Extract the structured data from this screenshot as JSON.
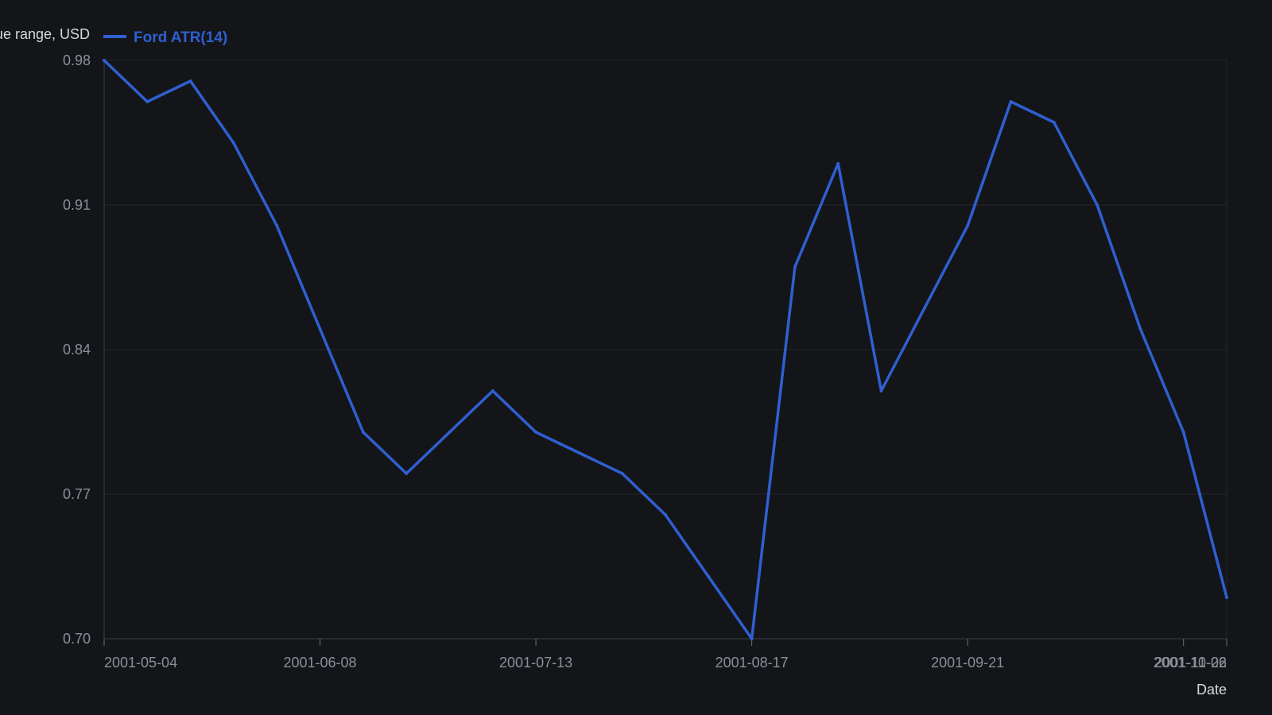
{
  "chart_data": {
    "type": "line",
    "xlabel": "Date",
    "ylabel": "True range, USD",
    "x_ticks": [
      "2001-05-04",
      "2001-06-08",
      "2001-07-13",
      "2001-08-17",
      "2001-09-21",
      "2001-10-26",
      "2001-11-02"
    ],
    "y_ticks": [
      "0.70",
      "0.77",
      "0.84",
      "0.91",
      "0.98"
    ],
    "ylim": [
      0.7,
      0.98
    ],
    "xlim": [
      "2001-05-04",
      "2001-11-02"
    ],
    "grid": true,
    "legend_position": "top-left",
    "series": [
      {
        "name": "Ford ATR(14)",
        "color": "#2f5fd0",
        "x": [
          "2001-05-04",
          "2001-05-11",
          "2001-05-18",
          "2001-05-25",
          "2001-06-01",
          "2001-06-08",
          "2001-06-15",
          "2001-06-22",
          "2001-06-29",
          "2001-07-06",
          "2001-07-13",
          "2001-07-20",
          "2001-07-27",
          "2001-08-03",
          "2001-08-10",
          "2001-08-17",
          "2001-08-24",
          "2001-08-31",
          "2001-09-07",
          "2001-09-14",
          "2001-09-21",
          "2001-09-28",
          "2001-10-05",
          "2001-10-12",
          "2001-10-19",
          "2001-10-26",
          "2001-11-02"
        ],
        "y": [
          0.98,
          0.96,
          0.97,
          0.94,
          0.9,
          0.85,
          0.8,
          0.78,
          0.8,
          0.82,
          0.8,
          0.79,
          0.78,
          0.76,
          0.73,
          0.7,
          0.88,
          0.93,
          0.82,
          0.86,
          0.9,
          0.96,
          0.95,
          0.91,
          0.85,
          0.8,
          0.72
        ]
      }
    ]
  }
}
